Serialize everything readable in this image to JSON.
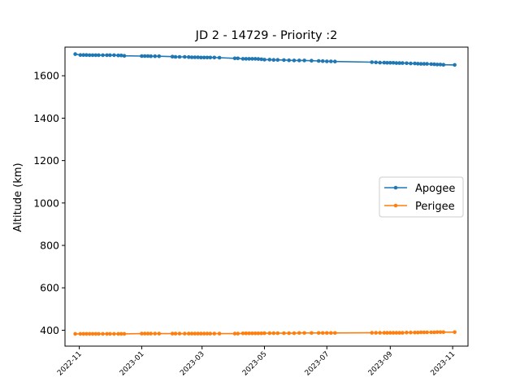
{
  "chart_data": {
    "type": "line",
    "title": "JD 2 - 14729 - Priority :2",
    "xlabel": "",
    "ylabel": "Altitude (km)",
    "xlim": [
      "2022-10-18",
      "2023-11-16"
    ],
    "ylim": [
      325,
      1735
    ],
    "yticks": [
      400,
      600,
      800,
      1000,
      1200,
      1400,
      1600
    ],
    "xticks": [
      "2022-11-01",
      "2023-01-01",
      "2023-03-01",
      "2023-05-01",
      "2023-07-01",
      "2023-09-01",
      "2023-11-01"
    ],
    "xtick_labels": [
      "2022-11",
      "2023-01",
      "2023-03",
      "2023-05",
      "2023-07",
      "2023-09",
      "2023-11"
    ],
    "legend_position": "center-right",
    "colors": {
      "apogee": "#1f77b4",
      "perigee": "#ff7f0e"
    },
    "series": [
      {
        "name": "Apogee",
        "x": [
          "2022-10-28",
          "2022-11-02",
          "2022-11-05",
          "2022-11-08",
          "2022-11-11",
          "2022-11-14",
          "2022-11-17",
          "2022-11-20",
          "2022-11-24",
          "2022-11-28",
          "2022-12-01",
          "2022-12-05",
          "2022-12-09",
          "2022-12-12",
          "2022-12-15",
          "2023-01-01",
          "2023-01-04",
          "2023-01-07",
          "2023-01-10",
          "2023-01-14",
          "2023-01-18",
          "2023-01-31",
          "2023-02-03",
          "2023-02-07",
          "2023-02-12",
          "2023-02-16",
          "2023-02-19",
          "2023-02-22",
          "2023-02-25",
          "2023-02-28",
          "2023-03-03",
          "2023-03-06",
          "2023-03-09",
          "2023-03-13",
          "2023-03-18",
          "2023-04-02",
          "2023-04-05",
          "2023-04-10",
          "2023-04-13",
          "2023-04-16",
          "2023-04-19",
          "2023-04-22",
          "2023-04-25",
          "2023-04-28",
          "2023-05-01",
          "2023-05-06",
          "2023-05-10",
          "2023-05-14",
          "2023-05-20",
          "2023-05-25",
          "2023-05-30",
          "2023-06-04",
          "2023-06-09",
          "2023-06-16",
          "2023-06-23",
          "2023-06-27",
          "2023-07-01",
          "2023-07-05",
          "2023-07-09",
          "2023-08-14",
          "2023-08-18",
          "2023-08-22",
          "2023-08-26",
          "2023-08-29",
          "2023-09-01",
          "2023-09-04",
          "2023-09-07",
          "2023-09-10",
          "2023-09-13",
          "2023-09-17",
          "2023-09-21",
          "2023-09-25",
          "2023-09-28",
          "2023-10-01",
          "2023-10-04",
          "2023-10-07",
          "2023-10-11",
          "2023-10-14",
          "2023-10-17",
          "2023-10-20",
          "2023-10-23",
          "2023-11-03"
        ],
        "y": [
          1702,
          1698,
          1698,
          1698,
          1697,
          1697,
          1697,
          1697,
          1697,
          1697,
          1697,
          1697,
          1696,
          1696,
          1694,
          1693,
          1693,
          1693,
          1692,
          1692,
          1692,
          1690,
          1689,
          1689,
          1689,
          1688,
          1687,
          1687,
          1687,
          1686,
          1686,
          1686,
          1686,
          1686,
          1685,
          1682,
          1682,
          1680,
          1680,
          1680,
          1680,
          1680,
          1679,
          1678,
          1676,
          1676,
          1675,
          1675,
          1674,
          1673,
          1672,
          1672,
          1672,
          1671,
          1670,
          1669,
          1668,
          1668,
          1667,
          1664,
          1663,
          1662,
          1662,
          1661,
          1661,
          1661,
          1660,
          1660,
          1660,
          1659,
          1658,
          1658,
          1657,
          1656,
          1656,
          1656,
          1655,
          1654,
          1653,
          1653,
          1652,
          1651
        ]
      },
      {
        "name": "Perigee",
        "x": [
          "2022-10-28",
          "2022-11-02",
          "2022-11-05",
          "2022-11-08",
          "2022-11-11",
          "2022-11-14",
          "2022-11-17",
          "2022-11-20",
          "2022-11-24",
          "2022-11-28",
          "2022-12-01",
          "2022-12-05",
          "2022-12-09",
          "2022-12-12",
          "2022-12-15",
          "2023-01-01",
          "2023-01-04",
          "2023-01-07",
          "2023-01-10",
          "2023-01-14",
          "2023-01-18",
          "2023-01-31",
          "2023-02-03",
          "2023-02-07",
          "2023-02-12",
          "2023-02-16",
          "2023-02-19",
          "2023-02-22",
          "2023-02-25",
          "2023-02-28",
          "2023-03-03",
          "2023-03-06",
          "2023-03-09",
          "2023-03-13",
          "2023-03-18",
          "2023-04-02",
          "2023-04-05",
          "2023-04-10",
          "2023-04-13",
          "2023-04-16",
          "2023-04-19",
          "2023-04-22",
          "2023-04-25",
          "2023-04-28",
          "2023-05-01",
          "2023-05-06",
          "2023-05-10",
          "2023-05-14",
          "2023-05-20",
          "2023-05-25",
          "2023-05-30",
          "2023-06-04",
          "2023-06-09",
          "2023-06-16",
          "2023-06-23",
          "2023-06-27",
          "2023-07-01",
          "2023-07-05",
          "2023-07-09",
          "2023-08-14",
          "2023-08-18",
          "2023-08-22",
          "2023-08-26",
          "2023-08-29",
          "2023-09-01",
          "2023-09-04",
          "2023-09-07",
          "2023-09-10",
          "2023-09-13",
          "2023-09-17",
          "2023-09-21",
          "2023-09-25",
          "2023-09-28",
          "2023-10-01",
          "2023-10-04",
          "2023-10-07",
          "2023-10-11",
          "2023-10-14",
          "2023-10-17",
          "2023-10-20",
          "2023-10-23",
          "2023-11-03"
        ],
        "y": [
          383,
          383,
          383,
          383,
          383,
          383,
          383,
          383,
          383,
          383,
          383,
          383,
          383,
          383,
          383,
          384,
          384,
          384,
          384,
          384,
          384,
          384,
          384,
          384,
          384,
          384,
          384,
          384,
          384,
          384,
          384,
          384,
          384,
          384,
          384,
          384,
          384,
          385,
          385,
          385,
          385,
          385,
          385,
          385,
          386,
          386,
          386,
          386,
          386,
          386,
          386,
          387,
          387,
          387,
          387,
          387,
          387,
          387,
          387,
          388,
          388,
          388,
          388,
          388,
          388,
          388,
          388,
          388,
          388,
          389,
          389,
          389,
          389,
          390,
          390,
          390,
          390,
          390,
          391,
          391,
          391,
          391
        ]
      }
    ]
  }
}
